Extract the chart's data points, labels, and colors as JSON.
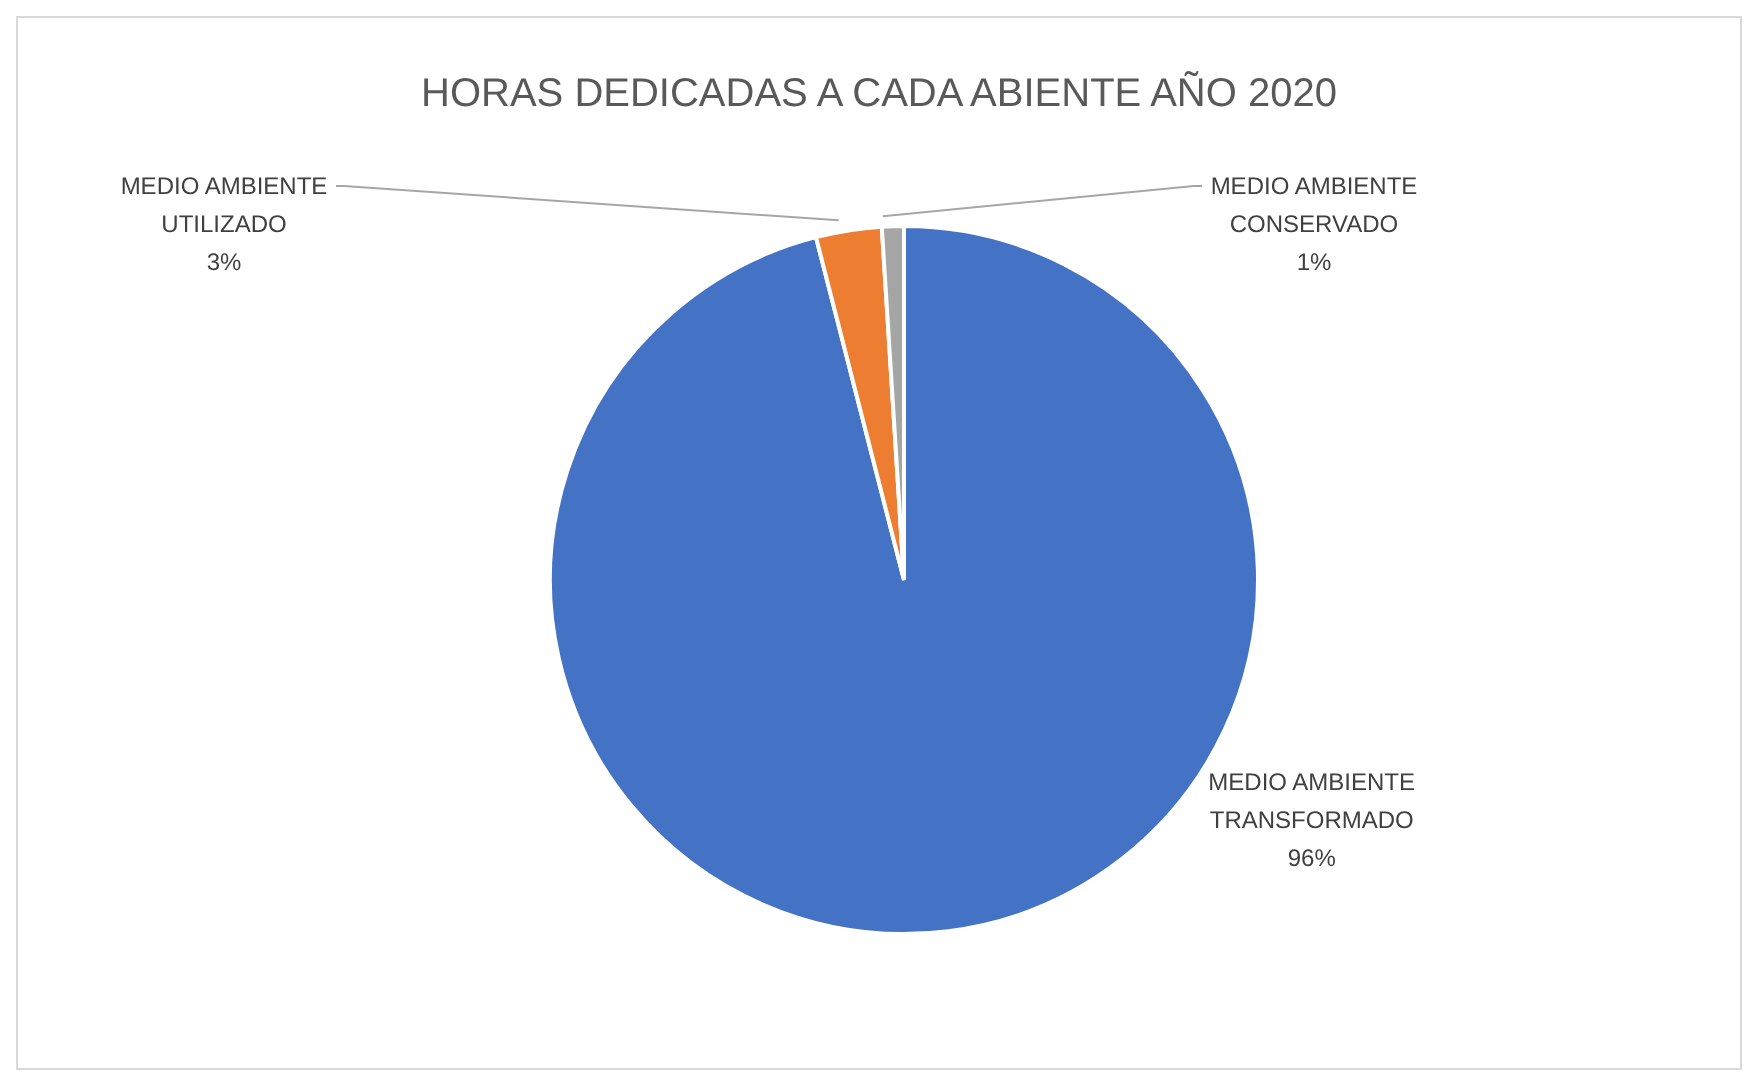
{
  "chart_data": {
    "type": "pie",
    "title": "HORAS DEDICADAS A CADA ABIENTE AÑO 2020",
    "categories": [
      "MEDIO AMBIENTE TRANSFORMADO",
      "MEDIO AMBIENTE UTILIZADO",
      "MEDIO AMBIENTE CONSERVADO"
    ],
    "values": [
      96,
      3,
      1
    ],
    "colors": [
      "#4472c4",
      "#ed7d31",
      "#a5a5a5"
    ],
    "value_labels": [
      "96%",
      "3%",
      "1%"
    ],
    "legend": false
  }
}
